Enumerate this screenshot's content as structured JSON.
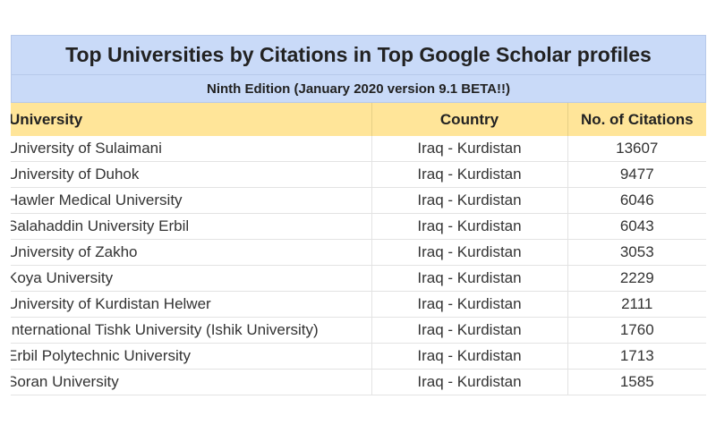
{
  "title": "Top Universities by Citations in Top Google Scholar profiles",
  "subtitle": "Ninth Edition (January 2020 version 9.1 BETA!!)",
  "columns": {
    "university": "University",
    "country": "Country",
    "citations": "No. of Citations"
  },
  "rows": [
    {
      "university": "University of Sulaimani",
      "country": "Iraq - Kurdistan",
      "citations": "13607"
    },
    {
      "university": "University of Duhok",
      "country": "Iraq - Kurdistan",
      "citations": "9477"
    },
    {
      "university": "Hawler Medical University",
      "country": "Iraq - Kurdistan",
      "citations": "6046"
    },
    {
      "university": "Salahaddin University Erbil",
      "country": "Iraq - Kurdistan",
      "citations": "6043"
    },
    {
      "university": "University of Zakho",
      "country": "Iraq - Kurdistan",
      "citations": "3053"
    },
    {
      "university": "Koya University",
      "country": "Iraq - Kurdistan",
      "citations": "2229"
    },
    {
      "university": "University of Kurdistan Helwer",
      "country": "Iraq - Kurdistan",
      "citations": "2111"
    },
    {
      "university": "International Tishk University (Ishik University)",
      "country": "Iraq - Kurdistan",
      "citations": "1760"
    },
    {
      "university": "Erbil Polytechnic University",
      "country": "Iraq - Kurdistan",
      "citations": "1713"
    },
    {
      "university": "Soran University",
      "country": "Iraq - Kurdistan",
      "citations": "1585"
    }
  ]
}
